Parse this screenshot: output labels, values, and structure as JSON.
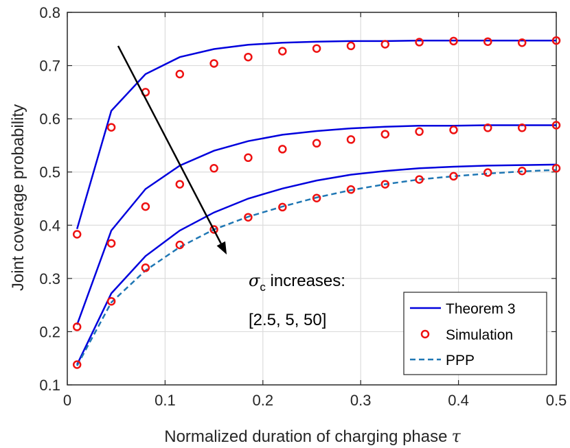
{
  "chart_data": {
    "type": "line",
    "title": "",
    "xlabel": "Normalized duration of charging phase",
    "xlabel_symbol": "τ",
    "ylabel": "Joint coverage probability",
    "xlim": [
      0,
      0.5
    ],
    "ylim": [
      0.1,
      0.8
    ],
    "xticks": [
      0,
      0.1,
      0.2,
      0.3,
      0.4,
      0.5
    ],
    "xtick_labels": [
      "0",
      "0.1",
      "0.2",
      "0.3",
      "0.4",
      "0.5"
    ],
    "yticks": [
      0.1,
      0.2,
      0.3,
      0.4,
      0.5,
      0.6,
      0.7,
      0.8
    ],
    "ytick_labels": [
      "0.1",
      "0.2",
      "0.3",
      "0.4",
      "0.5",
      "0.6",
      "0.7",
      "0.8"
    ],
    "grid": true,
    "legend_position": "bottom-right",
    "colors": {
      "theorem": "#0000dd",
      "simulation": "#ee1111",
      "ppp": "#1f77b4",
      "axis": "#262626",
      "grid": "#dcdcdc"
    },
    "x": [
      0.01,
      0.045,
      0.08,
      0.115,
      0.15,
      0.185,
      0.22,
      0.255,
      0.29,
      0.325,
      0.36,
      0.395,
      0.43,
      0.465,
      0.5
    ],
    "series": [
      {
        "name": "Theorem 3",
        "style": "solid-line",
        "group": "sigma_c = 2.5",
        "values": [
          0.393,
          0.615,
          0.684,
          0.716,
          0.731,
          0.739,
          0.743,
          0.745,
          0.746,
          0.746,
          0.747,
          0.747,
          0.747,
          0.747,
          0.747
        ]
      },
      {
        "name": "Theorem 3",
        "style": "solid-line",
        "group": "sigma_c = 5",
        "values": [
          0.213,
          0.39,
          0.468,
          0.512,
          0.54,
          0.558,
          0.57,
          0.577,
          0.582,
          0.585,
          0.587,
          0.587,
          0.588,
          0.588,
          0.588
        ]
      },
      {
        "name": "Theorem 3",
        "style": "solid-line",
        "group": "sigma_c = 50",
        "values": [
          0.138,
          0.272,
          0.342,
          0.39,
          0.424,
          0.45,
          0.469,
          0.484,
          0.495,
          0.502,
          0.507,
          0.51,
          0.512,
          0.513,
          0.514
        ]
      },
      {
        "name": "Simulation",
        "style": "circle-marker",
        "group": "sigma_c = 2.5",
        "values": [
          0.383,
          0.584,
          0.65,
          0.684,
          0.704,
          0.716,
          0.727,
          0.732,
          0.737,
          0.74,
          0.744,
          0.746,
          0.745,
          0.743,
          0.747
        ]
      },
      {
        "name": "Simulation",
        "style": "circle-marker",
        "group": "sigma_c = 5",
        "values": [
          0.209,
          0.366,
          0.435,
          0.477,
          0.507,
          0.527,
          0.543,
          0.554,
          0.561,
          0.571,
          0.576,
          0.579,
          0.583,
          0.583,
          0.588
        ]
      },
      {
        "name": "Simulation",
        "style": "circle-marker",
        "group": "sigma_c = 50",
        "values": [
          0.138,
          0.257,
          0.32,
          0.363,
          0.392,
          0.415,
          0.434,
          0.451,
          0.467,
          0.477,
          0.486,
          0.492,
          0.499,
          0.502,
          0.507
        ]
      },
      {
        "name": "PPP",
        "style": "dashed-line",
        "group": "PPP",
        "values": [
          0.136,
          0.255,
          0.315,
          0.359,
          0.392,
          0.416,
          0.435,
          0.452,
          0.466,
          0.477,
          0.486,
          0.492,
          0.497,
          0.501,
          0.504
        ]
      }
    ],
    "legend": [
      "Theorem 3",
      "Simulation",
      "PPP"
    ],
    "annotation": {
      "symbol": "σ",
      "subscript": "c",
      "line1_suffix": " increases:",
      "line2": "[2.5, 5, 50]",
      "arrow_from": {
        "x": 0.052,
        "y": 0.737
      },
      "arrow_to": {
        "x": 0.163,
        "y": 0.345
      }
    }
  }
}
